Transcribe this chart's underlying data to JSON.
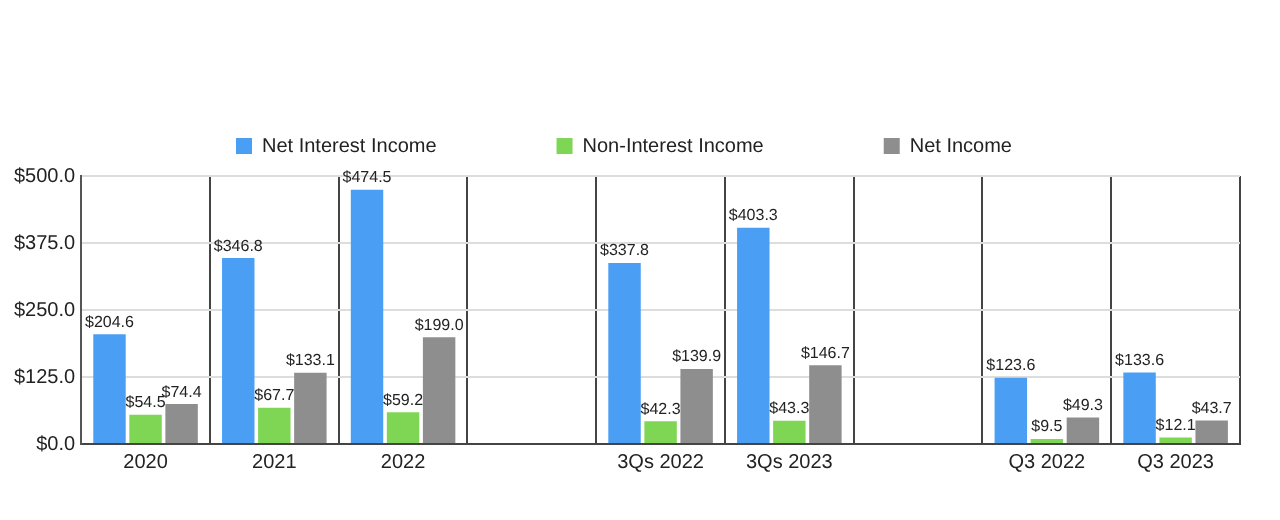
{
  "chart_data": {
    "type": "bar",
    "categories": [
      "2020",
      "2021",
      "2022",
      null,
      "3Qs 2022",
      "3Qs 2023",
      null,
      "Q3 2022",
      "Q3 2023"
    ],
    "series": [
      {
        "name": "Net Interest Income",
        "color": "#4a9ff5",
        "values": [
          204.6,
          346.8,
          474.5,
          null,
          337.8,
          403.3,
          null,
          123.6,
          133.6
        ],
        "value_labels": [
          "$204.6",
          "$346.8",
          "$474.5",
          null,
          "$337.8",
          "$403.3",
          null,
          "$123.6",
          "$133.6"
        ]
      },
      {
        "name": "Non-Interest Income",
        "color": "#7fd655",
        "values": [
          54.5,
          67.7,
          59.2,
          null,
          42.3,
          43.3,
          null,
          9.5,
          12.1
        ],
        "value_labels": [
          "$54.5",
          "$67.7",
          "$59.2",
          null,
          "$42.3",
          "$43.3",
          null,
          "$9.5",
          "$12.1"
        ]
      },
      {
        "name": "Net Income",
        "color": "#8e8e8e",
        "values": [
          74.4,
          133.1,
          199.0,
          null,
          139.9,
          146.7,
          null,
          49.3,
          43.7
        ],
        "value_labels": [
          "$74.4",
          "$133.1",
          "$199.0",
          null,
          "$139.9",
          "$146.7",
          null,
          "$49.3",
          "$43.7"
        ]
      }
    ],
    "ylim": [
      0,
      500
    ],
    "yticks": [
      {
        "value": 0,
        "label": "$0.0"
      },
      {
        "value": 125,
        "label": "$125.0"
      },
      {
        "value": 250,
        "label": "$250.0"
      },
      {
        "value": 375,
        "label": "$375.0"
      },
      {
        "value": 500,
        "label": "$500.0"
      }
    ],
    "grid": true,
    "legend": "top"
  }
}
